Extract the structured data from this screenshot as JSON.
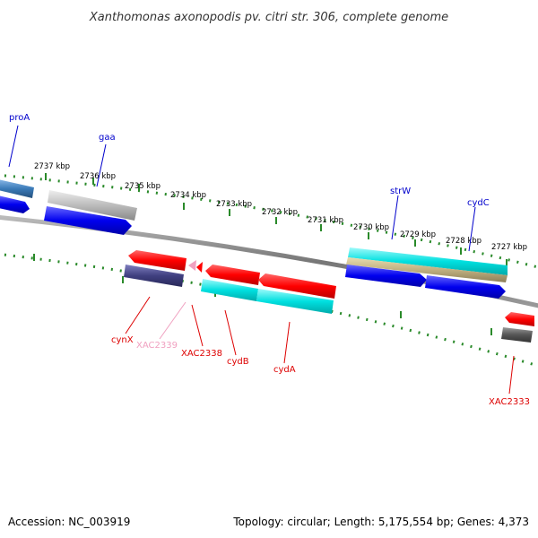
{
  "title": "Xanthomonas axonopodis pv. citri str. 306, complete genome",
  "footer": {
    "accession": "Accession: NC_003919",
    "topology": "Topology: circular; Length: 5,175,554 bp; Genes: 4,373"
  },
  "scale": {
    "ticks": [
      "2737 kbp",
      "2736 kbp",
      "2735 kbp",
      "2734 kbp",
      "2733 kbp",
      "2732 kbp",
      "2731 kbp",
      "2730 kbp",
      "2729 kbp",
      "2728 kbp",
      "2727 kbp"
    ]
  },
  "colors": {
    "background": "#ffffff",
    "backbone": "#888888",
    "tick_dots": "#2a8a2a",
    "label_forward": "#0000cc",
    "label_reverse": "#dd0000",
    "label_faded": "#f0a0c0",
    "feature_blue": "#0000ee",
    "feature_red": "#ff0000",
    "feature_cyan": "#00e0e0",
    "feature_gray": "#aaaaaa",
    "feature_navy": "#404080",
    "feature_steel": "#3a7ab8",
    "feature_tan": "#c0b080",
    "feature_darkgray": "#555555"
  },
  "labels": {
    "forward": [
      "proA",
      "gaa",
      "strW",
      "cydC"
    ],
    "reverse": [
      "cynX",
      "XAC2339",
      "XAC2338",
      "cydB",
      "cydA",
      "XAC2333"
    ]
  }
}
